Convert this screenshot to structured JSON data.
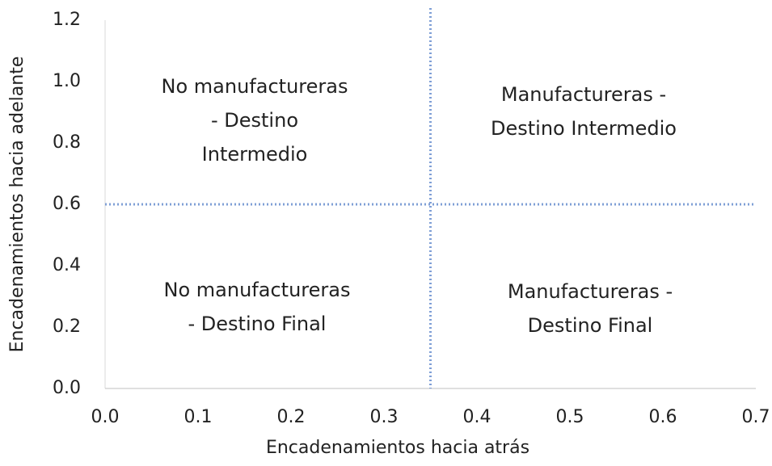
{
  "chart_data": {
    "type": "scatter",
    "x_label": "Encadenamientos hacia atrás",
    "y_label": "Encadenamientos hacia adelante",
    "xlim": [
      0,
      0.7
    ],
    "ylim": [
      0,
      1.2
    ],
    "xticks": [
      {
        "value": 0,
        "label": "0.0"
      },
      {
        "value": 0.1,
        "label": "0.1"
      },
      {
        "value": 0.2,
        "label": "0.2"
      },
      {
        "value": 0.3,
        "label": "0.3"
      },
      {
        "value": 0.4,
        "label": "0.4"
      },
      {
        "value": 0.5,
        "label": "0.5"
      },
      {
        "value": 0.6,
        "label": "0.6"
      },
      {
        "value": 0.7,
        "label": "0.7"
      }
    ],
    "yticks": [
      {
        "value": 0,
        "label": "0.0"
      },
      {
        "value": 0.2,
        "label": "0.2"
      },
      {
        "value": 0.4,
        "label": "0.4"
      },
      {
        "value": 0.6,
        "label": "0.6"
      },
      {
        "value": 0.8,
        "label": "0.8"
      },
      {
        "value": 1.0,
        "label": "1.0"
      },
      {
        "value": 1.2,
        "label": "1.2"
      }
    ],
    "reference_lines": {
      "x": 0.35,
      "y": 0.6,
      "color": "#7f9fd6"
    },
    "annotations": [
      {
        "lines": [
          "No manufactureras",
          "- Destino",
          "Intermedio"
        ]
      },
      {
        "lines": [
          "Manufactureras -",
          "Destino Intermedio"
        ]
      },
      {
        "lines": [
          "No manufactureras",
          "- Destino Final"
        ]
      },
      {
        "lines": [
          "Manufactureras -",
          "Destino Final"
        ]
      }
    ]
  }
}
